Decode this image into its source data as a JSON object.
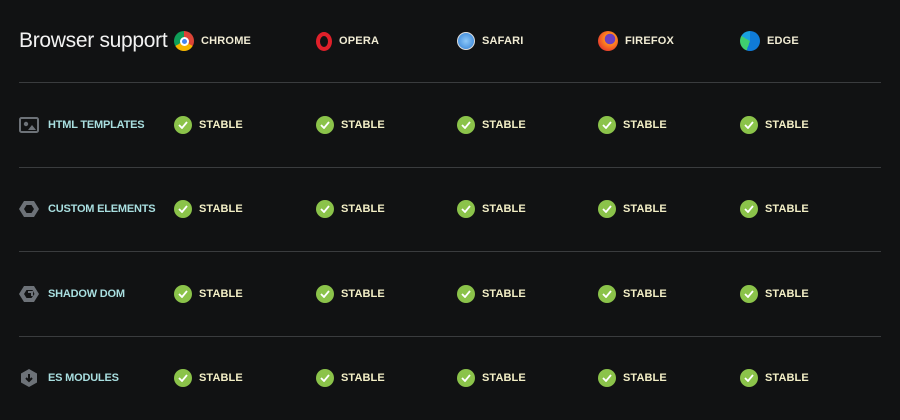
{
  "title": "Browser support",
  "browsers": [
    {
      "name": "CHROME",
      "icon": "chrome-icon"
    },
    {
      "name": "OPERA",
      "icon": "opera-icon"
    },
    {
      "name": "SAFARI",
      "icon": "safari-icon"
    },
    {
      "name": "FIREFOX",
      "icon": "firefox-icon"
    },
    {
      "name": "EDGE",
      "icon": "edge-icon"
    }
  ],
  "features": [
    {
      "name": "HTML TEMPLATES",
      "icon": "image-icon",
      "status": [
        "STABLE",
        "STABLE",
        "STABLE",
        "STABLE",
        "STABLE"
      ]
    },
    {
      "name": "CUSTOM ELEMENTS",
      "icon": "hexagon-icon",
      "status": [
        "STABLE",
        "STABLE",
        "STABLE",
        "STABLE",
        "STABLE"
      ]
    },
    {
      "name": "SHADOW DOM",
      "icon": "shadow-dom-icon",
      "status": [
        "STABLE",
        "STABLE",
        "STABLE",
        "STABLE",
        "STABLE"
      ]
    },
    {
      "name": "ES MODULES",
      "icon": "module-icon",
      "status": [
        "STABLE",
        "STABLE",
        "STABLE",
        "STABLE",
        "STABLE"
      ]
    }
  ],
  "colors": {
    "check": "#8bc34a",
    "feature_text": "#a9dfe0",
    "status_text": "#f3efc6",
    "background": "#111213"
  }
}
